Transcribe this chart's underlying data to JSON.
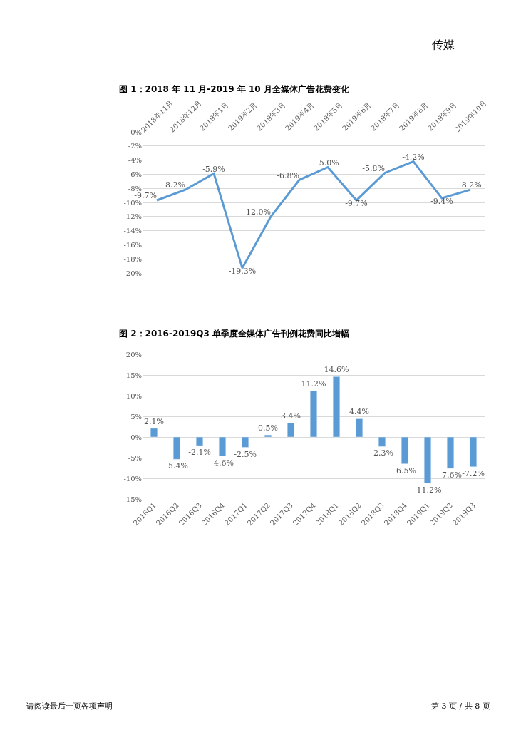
{
  "chart_data": [
    {
      "type": "line",
      "title": "图 1：2018 年 11 月-2019 年 10 月全媒体广告花费变化",
      "categories": [
        "2018年11月",
        "2018年12月",
        "2019年1月",
        "2019年2月",
        "2019年3月",
        "2019年4月",
        "2019年5月",
        "2019年6月",
        "2019年7月",
        "2019年8月",
        "2019年9月",
        "2019年10月"
      ],
      "series": [
        {
          "color": "#5b9bd5",
          "values": [
            -9.7,
            -8.2,
            -5.9,
            -19.3,
            -12.0,
            -6.8,
            -5.0,
            -9.7,
            -5.8,
            -4.2,
            -9.4,
            -8.2
          ],
          "value_labels": [
            "-9.7%",
            "-8.2%",
            "-5.9%",
            "-19.3%",
            "-12.0%",
            "-6.8%",
            "-5.0%",
            "-9.7%",
            "-5.8%",
            "-4.2%",
            "-9.4%",
            "-8.2%"
          ]
        }
      ],
      "ylim": [
        -20,
        0
      ],
      "yticks": [
        {
          "value": 0,
          "label": "0%"
        },
        {
          "value": -2,
          "label": "-2%"
        },
        {
          "value": -4,
          "label": "-4%"
        },
        {
          "value": -6,
          "label": "-6%"
        },
        {
          "value": -8,
          "label": "-8%"
        },
        {
          "value": -10,
          "label": "-10%"
        },
        {
          "value": -12,
          "label": "-12%"
        },
        {
          "value": -14,
          "label": "-14%"
        },
        {
          "value": -16,
          "label": "-16%"
        },
        {
          "value": -18,
          "label": "-18%"
        },
        {
          "value": -20,
          "label": "-20%"
        }
      ],
      "grid": "y",
      "legend": false,
      "marker": "none",
      "line_style": "solid",
      "annotations": [
        "传媒"
      ]
    },
    {
      "type": "bar",
      "title": "图 2：2016-2019Q3 单季度全媒体广告刊例花费同比增幅",
      "categories": [
        "2016Q1",
        "2016Q2",
        "2016Q3",
        "2016Q4",
        "2017Q1",
        "2017Q2",
        "2017Q3",
        "2017Q4",
        "2018Q1",
        "2018Q2",
        "2018Q3",
        "2018Q4",
        "2019Q1",
        "2019Q2",
        "2019Q3"
      ],
      "series": [
        {
          "color": "#5b9bd5",
          "values": [
            2.1,
            -5.4,
            -2.1,
            -4.6,
            -2.5,
            0.5,
            3.4,
            11.2,
            14.6,
            4.4,
            -2.3,
            -6.5,
            -11.2,
            -7.6,
            -7.2
          ],
          "value_labels": [
            "2.1%",
            "-5.4%",
            "-2.1%",
            "-4.6%",
            "-2.5%",
            "0.5%",
            "3.4%",
            "11.2%",
            "14.6%",
            "4.4%",
            "-2.3%",
            "-6.5%",
            "-11.2%",
            "-7.6%",
            "-7.2%"
          ]
        }
      ],
      "ylim": [
        -15,
        20
      ],
      "yticks": [
        {
          "value": 20,
          "label": "20%"
        },
        {
          "value": 15,
          "label": "15%"
        },
        {
          "value": 10,
          "label": "10%"
        },
        {
          "value": 5,
          "label": "5%"
        },
        {
          "value": 0,
          "label": "0%"
        },
        {
          "value": -5,
          "label": "-5%"
        },
        {
          "value": -10,
          "label": "-10%"
        },
        {
          "value": -15,
          "label": "-15%"
        }
      ],
      "grid": "y",
      "legend": false,
      "annotations": [
        "请阅读最后一页各项声明",
        "第 3 页 / 共 8 页"
      ]
    }
  ]
}
